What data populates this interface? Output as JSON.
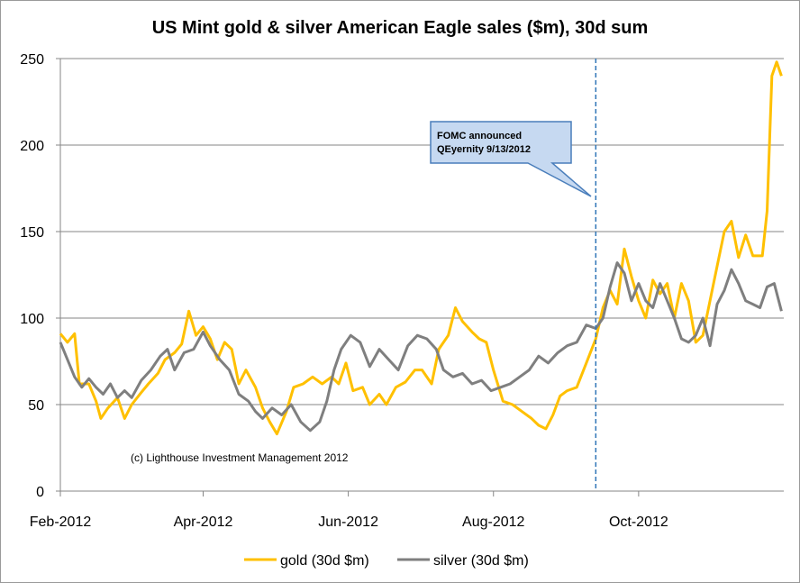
{
  "chart_data": {
    "type": "line",
    "title": "US Mint gold & silver American Eagle sales ($m), 30d sum",
    "xlabel": "",
    "ylabel": "",
    "ylim": [
      0,
      250
    ],
    "yticks": [
      0,
      50,
      100,
      150,
      200,
      250
    ],
    "xlim": [
      "2012-02-01",
      "2012-12-01"
    ],
    "xticks": [
      {
        "date": "2012-02-01",
        "label": "Feb-2012"
      },
      {
        "date": "2012-04-01",
        "label": "Apr-2012"
      },
      {
        "date": "2012-06-01",
        "label": "Jun-2012"
      },
      {
        "date": "2012-08-01",
        "label": "Aug-2012"
      },
      {
        "date": "2012-10-01",
        "label": "Oct-2012"
      }
    ],
    "grid": true,
    "legend_position": "bottom",
    "series": [
      {
        "name": "gold (30d $m)",
        "color": "#FFC000",
        "points": [
          [
            "2012-02-01",
            91
          ],
          [
            "2012-02-04",
            86
          ],
          [
            "2012-02-07",
            91
          ],
          [
            "2012-02-09",
            62
          ],
          [
            "2012-02-13",
            62
          ],
          [
            "2012-02-16",
            52
          ],
          [
            "2012-02-18",
            42
          ],
          [
            "2012-02-21",
            48
          ],
          [
            "2012-02-25",
            54
          ],
          [
            "2012-02-28",
            42
          ],
          [
            "2012-03-02",
            50
          ],
          [
            "2012-03-06",
            57
          ],
          [
            "2012-03-09",
            62
          ],
          [
            "2012-03-13",
            68
          ],
          [
            "2012-03-16",
            76
          ],
          [
            "2012-03-20",
            80
          ],
          [
            "2012-03-23",
            85
          ],
          [
            "2012-03-26",
            104
          ],
          [
            "2012-03-29",
            90
          ],
          [
            "2012-04-01",
            95
          ],
          [
            "2012-04-04",
            88
          ],
          [
            "2012-04-07",
            76
          ],
          [
            "2012-04-10",
            86
          ],
          [
            "2012-04-13",
            82
          ],
          [
            "2012-04-16",
            62
          ],
          [
            "2012-04-19",
            70
          ],
          [
            "2012-04-23",
            60
          ],
          [
            "2012-04-26",
            48
          ],
          [
            "2012-04-29",
            40
          ],
          [
            "2012-05-02",
            33
          ],
          [
            "2012-05-06",
            46
          ],
          [
            "2012-05-09",
            60
          ],
          [
            "2012-05-13",
            62
          ],
          [
            "2012-05-17",
            66
          ],
          [
            "2012-05-21",
            62
          ],
          [
            "2012-05-25",
            66
          ],
          [
            "2012-05-28",
            62
          ],
          [
            "2012-05-31",
            74
          ],
          [
            "2012-06-03",
            58
          ],
          [
            "2012-06-07",
            60
          ],
          [
            "2012-06-10",
            50
          ],
          [
            "2012-06-14",
            56
          ],
          [
            "2012-06-17",
            50
          ],
          [
            "2012-06-21",
            60
          ],
          [
            "2012-06-25",
            63
          ],
          [
            "2012-06-29",
            70
          ],
          [
            "2012-07-02",
            70
          ],
          [
            "2012-07-06",
            62
          ],
          [
            "2012-07-09",
            82
          ],
          [
            "2012-07-13",
            90
          ],
          [
            "2012-07-16",
            106
          ],
          [
            "2012-07-19",
            98
          ],
          [
            "2012-07-23",
            92
          ],
          [
            "2012-07-26",
            88
          ],
          [
            "2012-07-29",
            86
          ],
          [
            "2012-08-01",
            70
          ],
          [
            "2012-08-05",
            52
          ],
          [
            "2012-08-09",
            50
          ],
          [
            "2012-08-13",
            46
          ],
          [
            "2012-08-17",
            42
          ],
          [
            "2012-08-20",
            38
          ],
          [
            "2012-08-23",
            36
          ],
          [
            "2012-08-26",
            44
          ],
          [
            "2012-08-29",
            55
          ],
          [
            "2012-09-01",
            58
          ],
          [
            "2012-09-05",
            60
          ],
          [
            "2012-09-09",
            74
          ],
          [
            "2012-09-13",
            88
          ],
          [
            "2012-09-16",
            106
          ],
          [
            "2012-09-19",
            116
          ],
          [
            "2012-09-22",
            108
          ],
          [
            "2012-09-25",
            140
          ],
          [
            "2012-09-28",
            124
          ],
          [
            "2012-10-01",
            110
          ],
          [
            "2012-10-04",
            100
          ],
          [
            "2012-10-07",
            122
          ],
          [
            "2012-10-10",
            114
          ],
          [
            "2012-10-13",
            120
          ],
          [
            "2012-10-16",
            100
          ],
          [
            "2012-10-19",
            120
          ],
          [
            "2012-10-22",
            110
          ],
          [
            "2012-10-25",
            86
          ],
          [
            "2012-10-28",
            90
          ],
          [
            "2012-10-31",
            110
          ],
          [
            "2012-11-03",
            130
          ],
          [
            "2012-11-06",
            150
          ],
          [
            "2012-11-09",
            156
          ],
          [
            "2012-11-12",
            135
          ],
          [
            "2012-11-15",
            148
          ],
          [
            "2012-11-18",
            136
          ],
          [
            "2012-11-22",
            136
          ],
          [
            "2012-11-24",
            162
          ],
          [
            "2012-11-26",
            240
          ],
          [
            "2012-11-28",
            248
          ],
          [
            "2012-11-30",
            240
          ]
        ]
      },
      {
        "name": "silver (30d $m)",
        "color": "#7F7F7F",
        "points": [
          [
            "2012-02-01",
            86
          ],
          [
            "2012-02-04",
            76
          ],
          [
            "2012-02-07",
            66
          ],
          [
            "2012-02-10",
            60
          ],
          [
            "2012-02-13",
            65
          ],
          [
            "2012-02-16",
            60
          ],
          [
            "2012-02-19",
            56
          ],
          [
            "2012-02-22",
            62
          ],
          [
            "2012-02-25",
            54
          ],
          [
            "2012-02-28",
            58
          ],
          [
            "2012-03-02",
            54
          ],
          [
            "2012-03-06",
            64
          ],
          [
            "2012-03-10",
            70
          ],
          [
            "2012-03-14",
            78
          ],
          [
            "2012-03-17",
            82
          ],
          [
            "2012-03-20",
            70
          ],
          [
            "2012-03-24",
            80
          ],
          [
            "2012-03-28",
            82
          ],
          [
            "2012-04-01",
            92
          ],
          [
            "2012-04-04",
            84
          ],
          [
            "2012-04-08",
            76
          ],
          [
            "2012-04-12",
            70
          ],
          [
            "2012-04-16",
            56
          ],
          [
            "2012-04-20",
            52
          ],
          [
            "2012-04-23",
            46
          ],
          [
            "2012-04-26",
            42
          ],
          [
            "2012-04-30",
            48
          ],
          [
            "2012-05-04",
            44
          ],
          [
            "2012-05-08",
            50
          ],
          [
            "2012-05-12",
            40
          ],
          [
            "2012-05-16",
            35
          ],
          [
            "2012-05-20",
            40
          ],
          [
            "2012-05-23",
            52
          ],
          [
            "2012-05-26",
            70
          ],
          [
            "2012-05-29",
            82
          ],
          [
            "2012-06-02",
            90
          ],
          [
            "2012-06-06",
            86
          ],
          [
            "2012-06-10",
            72
          ],
          [
            "2012-06-14",
            82
          ],
          [
            "2012-06-18",
            76
          ],
          [
            "2012-06-22",
            70
          ],
          [
            "2012-06-26",
            84
          ],
          [
            "2012-06-30",
            90
          ],
          [
            "2012-07-04",
            88
          ],
          [
            "2012-07-08",
            82
          ],
          [
            "2012-07-11",
            70
          ],
          [
            "2012-07-15",
            66
          ],
          [
            "2012-07-19",
            68
          ],
          [
            "2012-07-23",
            62
          ],
          [
            "2012-07-27",
            64
          ],
          [
            "2012-07-31",
            58
          ],
          [
            "2012-08-04",
            60
          ],
          [
            "2012-08-08",
            62
          ],
          [
            "2012-08-12",
            66
          ],
          [
            "2012-08-16",
            70
          ],
          [
            "2012-08-20",
            78
          ],
          [
            "2012-08-24",
            74
          ],
          [
            "2012-08-28",
            80
          ],
          [
            "2012-09-01",
            84
          ],
          [
            "2012-09-05",
            86
          ],
          [
            "2012-09-09",
            96
          ],
          [
            "2012-09-13",
            94
          ],
          [
            "2012-09-16",
            100
          ],
          [
            "2012-09-19",
            118
          ],
          [
            "2012-09-22",
            132
          ],
          [
            "2012-09-25",
            126
          ],
          [
            "2012-09-28",
            110
          ],
          [
            "2012-10-01",
            120
          ],
          [
            "2012-10-04",
            110
          ],
          [
            "2012-10-07",
            106
          ],
          [
            "2012-10-10",
            120
          ],
          [
            "2012-10-13",
            110
          ],
          [
            "2012-10-16",
            100
          ],
          [
            "2012-10-19",
            88
          ],
          [
            "2012-10-22",
            86
          ],
          [
            "2012-10-25",
            90
          ],
          [
            "2012-10-28",
            100
          ],
          [
            "2012-10-31",
            84
          ],
          [
            "2012-11-03",
            108
          ],
          [
            "2012-11-06",
            116
          ],
          [
            "2012-11-09",
            128
          ],
          [
            "2012-11-12",
            120
          ],
          [
            "2012-11-15",
            110
          ],
          [
            "2012-11-18",
            108
          ],
          [
            "2012-11-21",
            106
          ],
          [
            "2012-11-24",
            118
          ],
          [
            "2012-11-27",
            120
          ],
          [
            "2012-11-30",
            104
          ]
        ]
      }
    ],
    "vertical_marker": {
      "date": "2012-09-13",
      "color": "#2E75B6",
      "style": "dashed"
    },
    "annotations": [
      {
        "text_lines": [
          "FOMC announced",
          "QEyernity 9/13/2012"
        ]
      },
      {
        "text": "(c) Lighthouse Investment Management 2012"
      }
    ]
  }
}
